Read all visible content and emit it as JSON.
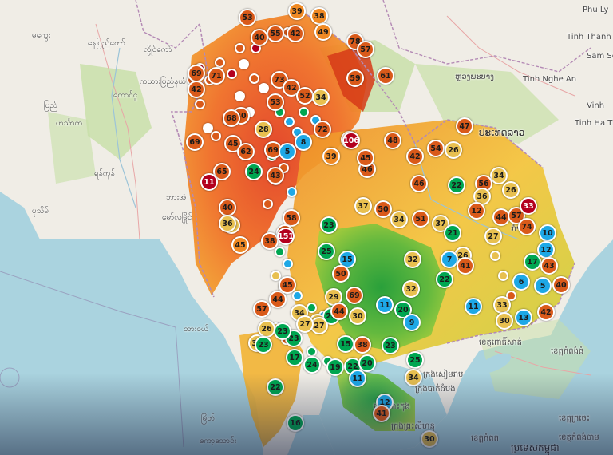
{
  "colors": {
    "sea": "#aad3df",
    "land": "#f0ede6",
    "forest": "#c7dfa6",
    "border": "#b48ab5",
    "aqi_good": "#00a651",
    "aqi_moderate": "#e8c050",
    "aqi_usg": "#f08a24",
    "aqi_unhealthy": "#d95a1a",
    "aqi_very_unhealthy": "#b3001e",
    "aqi_low": "#1ea8e6"
  },
  "place_labels": [
    {
      "id": "lbl-1",
      "text": "မကွေး"
    },
    {
      "id": "lbl-2",
      "text": "နေပြည်တော်"
    },
    {
      "id": "lbl-3",
      "text": "လွိုင်ကော်"
    },
    {
      "id": "lbl-4",
      "text": "ကယားပြည်နယ်"
    },
    {
      "id": "lbl-5",
      "text": "ပြည်"
    },
    {
      "id": "lbl-6",
      "text": "တောင်ငူ"
    },
    {
      "id": "lbl-7",
      "text": "ဟင်္သာတ"
    },
    {
      "id": "lbl-8",
      "text": "ရန်ကုန်"
    },
    {
      "id": "lbl-9",
      "text": "ပုသိမ်"
    },
    {
      "id": "lbl-10",
      "text": "ဘားအံ"
    },
    {
      "id": "lbl-11",
      "text": "မော်လမြိုင်"
    },
    {
      "id": "lbl-12",
      "text": "ထားဝယ်"
    },
    {
      "id": "lbl-13",
      "text": "မြိတ်"
    },
    {
      "id": "lbl-14",
      "text": "ကော့သောင်း"
    },
    {
      "id": "lbl-15",
      "text": "Phu Ly"
    },
    {
      "id": "lbl-16",
      "text": "Tinh Thanh Hoa"
    },
    {
      "id": "lbl-17",
      "text": "Sam Son"
    },
    {
      "id": "lbl-18",
      "text": "Tinh Nghe An"
    },
    {
      "id": "lbl-19",
      "text": "Vinh"
    },
    {
      "id": "lbl-20",
      "text": "Tinh Ha Tinh"
    },
    {
      "id": "lbl-21",
      "text": "ປະເທດລາວ"
    },
    {
      "id": "lbl-22",
      "text": "ຫຼວງພະບາງ"
    },
    {
      "id": "lbl-23",
      "text": "ກຳປອດ"
    },
    {
      "id": "lbl-24",
      "text": "ខេត្តពោធិ៍សាត់"
    },
    {
      "id": "lbl-25",
      "text": "ខេត្តកំពង់ធំ"
    },
    {
      "id": "lbl-26",
      "text": "ក្រុងសៀមរាប"
    },
    {
      "id": "lbl-27",
      "text": "ក្រុងបាត់ដំបង"
    },
    {
      "id": "lbl-28",
      "text": "ខេត្តកោះកុង"
    },
    {
      "id": "lbl-29",
      "text": "ក្រុងព្រះសីហនុ"
    },
    {
      "id": "lbl-30",
      "text": "ខេត្តកំពត"
    },
    {
      "id": "lbl-31",
      "text": "ខេត្តក្រចេះ"
    },
    {
      "id": "lbl-32",
      "text": "ខេត្តកំពង់ចាម"
    },
    {
      "id": "lbl-33",
      "text": "ប្រទេសកម្ពុជា"
    }
  ],
  "aqi_markers": [
    {
      "v": "39",
      "c": "usg"
    },
    {
      "v": "38",
      "c": "usg"
    },
    {
      "v": "53",
      "c": "unhealthy"
    },
    {
      "v": "55",
      "c": "unhealthy"
    },
    {
      "v": "42",
      "c": "unhealthy"
    },
    {
      "v": "49",
      "c": "usg"
    },
    {
      "v": "40",
      "c": "unhealthy"
    },
    {
      "v": "78",
      "c": "unhealthy"
    },
    {
      "v": "57",
      "c": "unhealthy"
    },
    {
      "v": "69",
      "c": "unhealthy"
    },
    {
      "v": "71",
      "c": "unhealthy"
    },
    {
      "v": "42",
      "c": "unhealthy"
    },
    {
      "v": "73",
      "c": "unhealthy"
    },
    {
      "v": "42",
      "c": "unhealthy"
    },
    {
      "v": "52",
      "c": "unhealthy"
    },
    {
      "v": "34",
      "c": "moderate"
    },
    {
      "v": "59",
      "c": "unhealthy"
    },
    {
      "v": "61",
      "c": "unhealthy"
    },
    {
      "v": "53",
      "c": "unhealthy"
    },
    {
      "v": "40",
      "c": "unhealthy"
    },
    {
      "v": "68",
      "c": "unhealthy"
    },
    {
      "v": "28",
      "c": "moderate"
    },
    {
      "v": "72",
      "c": "unhealthy"
    },
    {
      "v": "61",
      "c": "unhealthy"
    },
    {
      "v": "69",
      "c": "unhealthy"
    },
    {
      "v": "45",
      "c": "unhealthy"
    },
    {
      "v": "62",
      "c": "unhealthy"
    },
    {
      "v": "69",
      "c": "unhealthy"
    },
    {
      "v": "8",
      "c": "low"
    },
    {
      "v": "5",
      "c": "low"
    },
    {
      "v": "39",
      "c": "usg"
    },
    {
      "v": "106",
      "c": "very"
    },
    {
      "v": "48",
      "c": "unhealthy"
    },
    {
      "v": "42",
      "c": "unhealthy"
    },
    {
      "v": "46",
      "c": "unhealthy"
    },
    {
      "v": "45",
      "c": "unhealthy"
    },
    {
      "v": "54",
      "c": "unhealthy"
    },
    {
      "v": "26",
      "c": "moderate"
    },
    {
      "v": "47",
      "c": "unhealthy"
    },
    {
      "v": "34",
      "c": "moderate"
    },
    {
      "v": "65",
      "c": "unhealthy"
    },
    {
      "v": "11",
      "c": "very"
    },
    {
      "v": "24",
      "c": "good"
    },
    {
      "v": "43",
      "c": "unhealthy"
    },
    {
      "v": "46",
      "c": "unhealthy"
    },
    {
      "v": "22",
      "c": "good"
    },
    {
      "v": "56",
      "c": "unhealthy"
    },
    {
      "v": "36",
      "c": "moderate"
    },
    {
      "v": "26",
      "c": "moderate"
    },
    {
      "v": "40",
      "c": "unhealthy"
    },
    {
      "v": "35",
      "c": "moderate"
    },
    {
      "v": "58",
      "c": "unhealthy"
    },
    {
      "v": "44",
      "c": "unhealthy"
    },
    {
      "v": "37",
      "c": "moderate"
    },
    {
      "v": "50",
      "c": "unhealthy"
    },
    {
      "v": "34",
      "c": "moderate"
    },
    {
      "v": "51",
      "c": "unhealthy"
    },
    {
      "v": "37",
      "c": "moderate"
    },
    {
      "v": "12",
      "c": "unhealthy"
    },
    {
      "v": "44",
      "c": "unhealthy"
    },
    {
      "v": "57",
      "c": "unhealthy"
    },
    {
      "v": "33",
      "c": "very"
    },
    {
      "v": "36",
      "c": "moderate"
    },
    {
      "v": "45",
      "c": "usg"
    },
    {
      "v": "38",
      "c": "unhealthy"
    },
    {
      "v": "151",
      "c": "very"
    },
    {
      "v": "23",
      "c": "good"
    },
    {
      "v": "21",
      "c": "good"
    },
    {
      "v": "27",
      "c": "moderate"
    },
    {
      "v": "74",
      "c": "unhealthy"
    },
    {
      "v": "10",
      "c": "low"
    },
    {
      "v": "26",
      "c": "moderate"
    },
    {
      "v": "25",
      "c": "good"
    },
    {
      "v": "15",
      "c": "low"
    },
    {
      "v": "32",
      "c": "moderate"
    },
    {
      "v": "7",
      "c": "low"
    },
    {
      "v": "41",
      "c": "unhealthy"
    },
    {
      "v": "17",
      "c": "good"
    },
    {
      "v": "12",
      "c": "low"
    },
    {
      "v": "22",
      "c": "good"
    },
    {
      "v": "43",
      "c": "unhealthy"
    },
    {
      "v": "6",
      "c": "low"
    },
    {
      "v": "5",
      "c": "low"
    },
    {
      "v": "40",
      "c": "unhealthy"
    },
    {
      "v": "32",
      "c": "moderate"
    },
    {
      "v": "57",
      "c": "unhealthy"
    },
    {
      "v": "44",
      "c": "unhealthy"
    },
    {
      "v": "11",
      "c": "low"
    },
    {
      "v": "20",
      "c": "good"
    },
    {
      "v": "11",
      "c": "low"
    },
    {
      "v": "33",
      "c": "moderate"
    },
    {
      "v": "42",
      "c": "unhealthy"
    },
    {
      "v": "30",
      "c": "moderate"
    },
    {
      "v": "13",
      "c": "low"
    },
    {
      "v": "30",
      "c": "moderate"
    },
    {
      "v": "34",
      "c": "moderate"
    },
    {
      "v": "25",
      "c": "good"
    },
    {
      "v": "9",
      "c": "low"
    },
    {
      "v": "27",
      "c": "moderate"
    },
    {
      "v": "23",
      "c": "good"
    },
    {
      "v": "34",
      "c": "moderate"
    },
    {
      "v": "23",
      "c": "good"
    },
    {
      "v": "15",
      "c": "good"
    },
    {
      "v": "38",
      "c": "unhealthy"
    },
    {
      "v": "23",
      "c": "good"
    },
    {
      "v": "17",
      "c": "good"
    },
    {
      "v": "24",
      "c": "good"
    },
    {
      "v": "19",
      "c": "good"
    },
    {
      "v": "22",
      "c": "good"
    },
    {
      "v": "20",
      "c": "good"
    },
    {
      "v": "25",
      "c": "good"
    },
    {
      "v": "34",
      "c": "moderate"
    },
    {
      "v": "11",
      "c": "low"
    },
    {
      "v": "22",
      "c": "good"
    },
    {
      "v": "12",
      "c": "low"
    },
    {
      "v": "16",
      "c": "good"
    },
    {
      "v": "41",
      "c": "unhealthy"
    },
    {
      "v": "30",
      "c": "moderate"
    },
    {
      "v": "50",
      "c": "unhealthy"
    },
    {
      "v": "29",
      "c": "moderate"
    },
    {
      "v": "69",
      "c": "unhealthy"
    },
    {
      "v": "45",
      "c": "unhealthy"
    },
    {
      "v": "34",
      "c": "moderate"
    },
    {
      "v": "26",
      "c": "moderate"
    },
    {
      "v": "27",
      "c": "moderate"
    },
    {
      "v": "44",
      "c": "unhealthy"
    },
    {
      "v": "23",
      "c": "good"
    }
  ]
}
